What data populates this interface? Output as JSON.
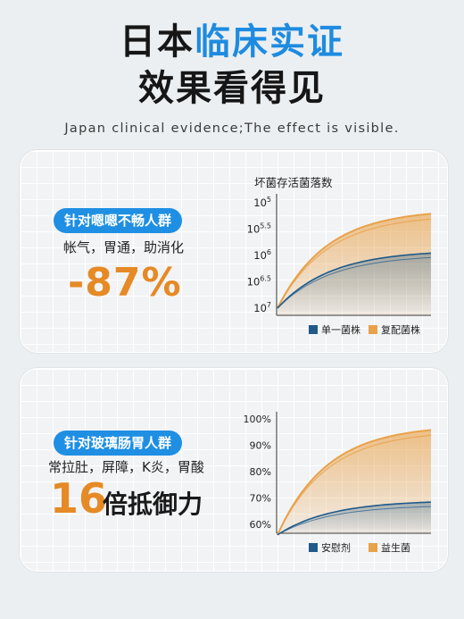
{
  "header": {
    "title_part1": "日本",
    "title_part2": "临床实证",
    "title_line2": "效果看得见",
    "subtitle": "Japan clinical evidence;The effect is visible."
  },
  "colors": {
    "accent_blue": "#1f8fe3",
    "accent_orange": "#e58a25",
    "series_dark_blue": "#1f5a8a",
    "series_orange": "#e8a24a"
  },
  "card1": {
    "pill": "针对嗯嗯不畅人群",
    "description": "帐气，胃通，助消化",
    "highlight": "-87%"
  },
  "card2": {
    "pill": "针对玻璃肠胃人群",
    "description": "常拉肚，屏障，K炎，胃酸",
    "highlight_number": "16",
    "highlight_suffix": "倍抵御力"
  },
  "chart_data": [
    {
      "type": "area",
      "title": "坏菌存活菌落数",
      "yticks": [
        {
          "base": "10",
          "exp": "5"
        },
        {
          "base": "10",
          "exp": "5.5"
        },
        {
          "base": "10",
          "exp": "6"
        },
        {
          "base": "10",
          "exp": "6.5"
        },
        {
          "base": "10",
          "exp": "7"
        }
      ],
      "y_direction": "inverted",
      "ylim_exponent": [
        5,
        7
      ],
      "series": [
        {
          "name": "单一菌株",
          "start_exponent": 7.0,
          "end_exponent": 5.95,
          "color": "#1f5a8a"
        },
        {
          "name": "复配菌株",
          "start_exponent": 7.0,
          "end_exponent": 5.2,
          "color": "#e8a24a"
        }
      ],
      "legend_position": "bottom"
    },
    {
      "type": "area",
      "title": "",
      "ytick_labels": [
        "100%",
        "90%",
        "80%",
        "70%",
        "60%"
      ],
      "ylim": [
        55,
        100
      ],
      "series": [
        {
          "name": "安慰剂",
          "start": 56,
          "end": 68.5,
          "color": "#1f5a8a"
        },
        {
          "name": "益生菌",
          "start": 56,
          "end": 96,
          "color": "#e8a24a"
        }
      ],
      "legend_position": "bottom"
    }
  ]
}
